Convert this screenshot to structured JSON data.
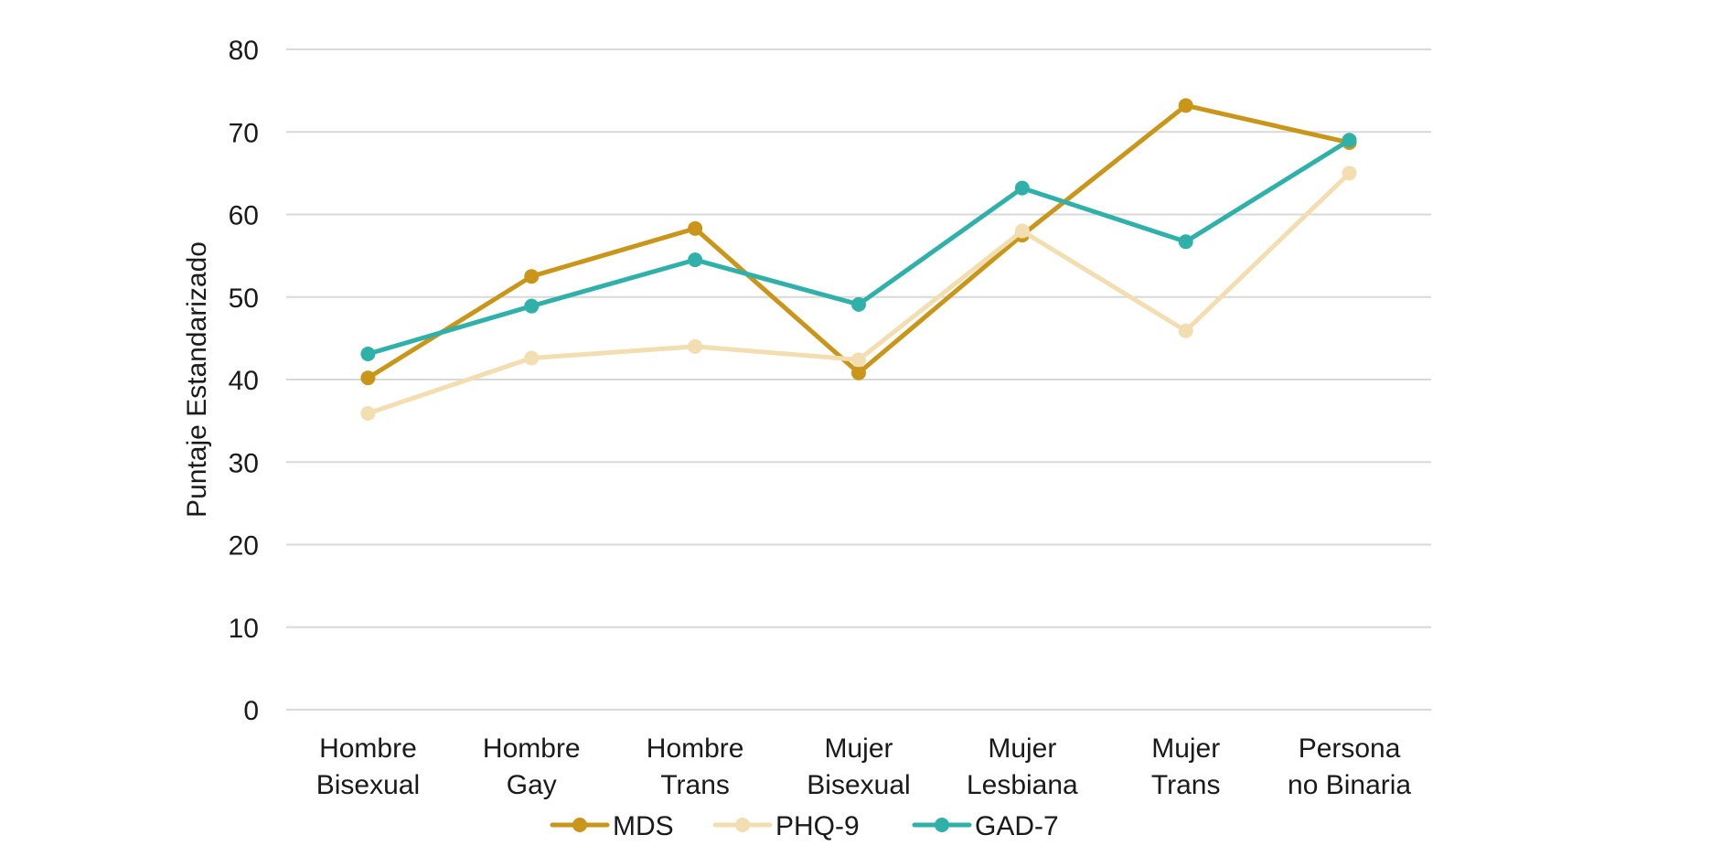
{
  "chart_data": {
    "type": "line",
    "categories": [
      [
        "Hombre",
        "Bisexual"
      ],
      [
        "Hombre",
        "Gay"
      ],
      [
        "Hombre",
        "Trans"
      ],
      [
        "Mujer",
        "Bisexual"
      ],
      [
        "Mujer",
        "Lesbiana"
      ],
      [
        "Mujer",
        "Trans"
      ],
      [
        "Persona",
        "no Binaria"
      ]
    ],
    "series": [
      {
        "name": "MDS",
        "color": "#c9961a",
        "values": [
          40.2,
          52.5,
          58.3,
          40.8,
          57.5,
          73.2,
          68.7
        ]
      },
      {
        "name": "PHQ-9",
        "color": "#f2deb0",
        "values": [
          35.9,
          42.6,
          44.0,
          42.4,
          58.0,
          45.9,
          65.0
        ]
      },
      {
        "name": "GAD-7",
        "color": "#2fb1a9",
        "values": [
          43.1,
          48.9,
          54.5,
          49.1,
          63.2,
          56.7,
          69.0
        ]
      }
    ],
    "title": "",
    "xlabel": "",
    "ylabel": "Puntaje Estandarizado",
    "ylim": [
      0,
      80
    ],
    "yticks": [
      0,
      10,
      20,
      30,
      40,
      50,
      60,
      70,
      80
    ],
    "grid": true,
    "legend": "bottom"
  }
}
